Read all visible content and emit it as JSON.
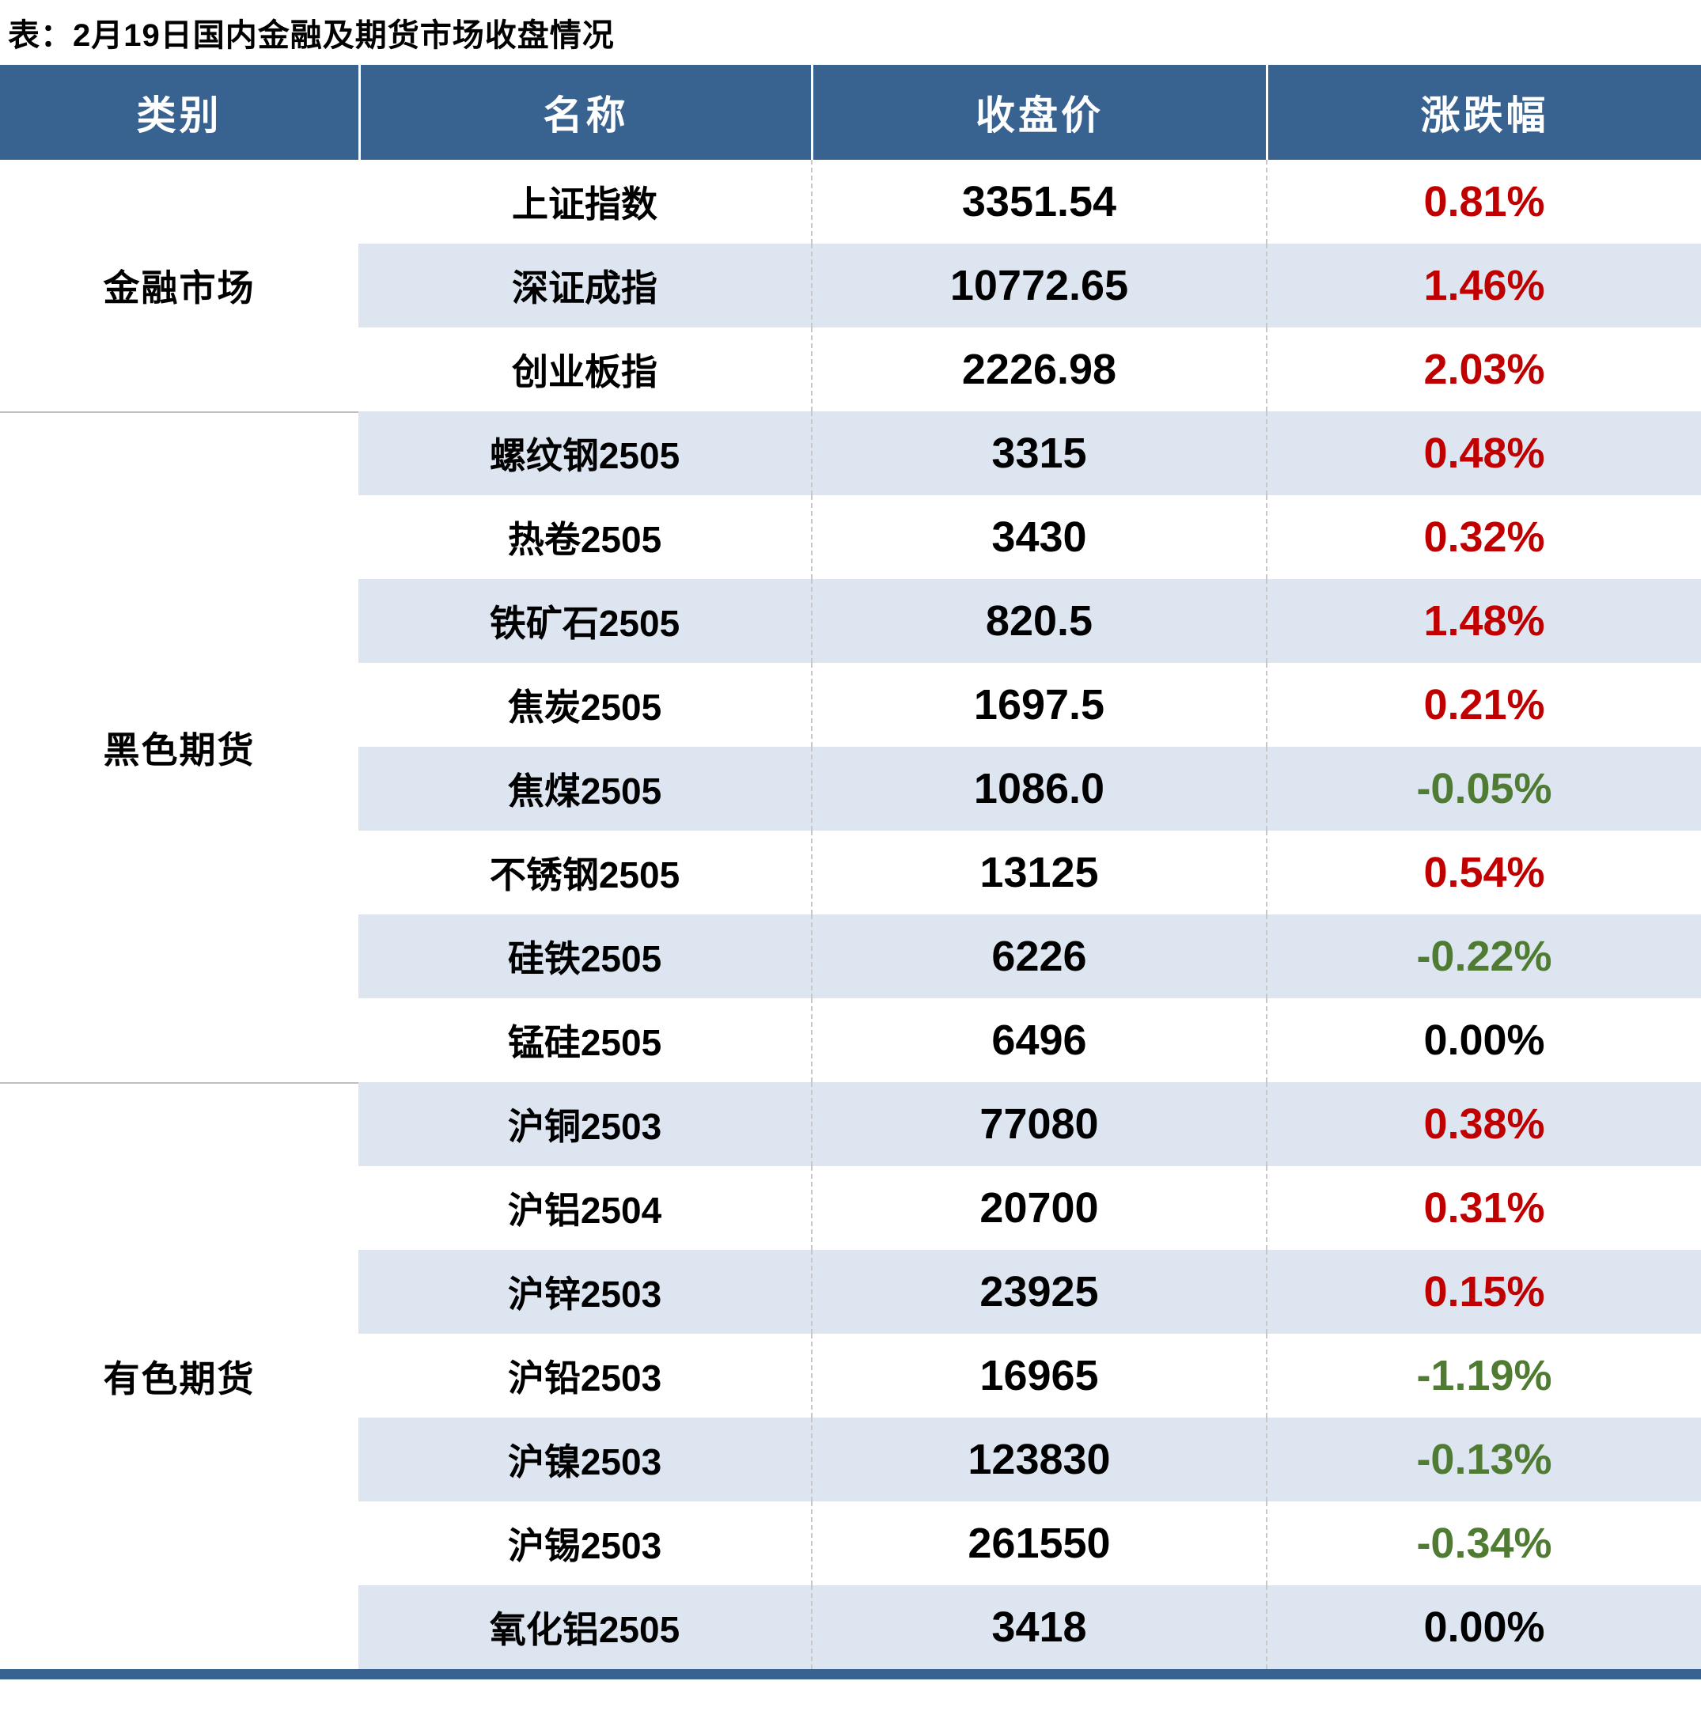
{
  "page": {
    "title": "表：2月19日国内金融及期货市场收盘情况"
  },
  "colors": {
    "header_bg": "#38628F",
    "stripe_row_bg": "#DCE5F0",
    "up_red": "#C00000",
    "down_green": "#4F7B33",
    "flat_black": "#000000",
    "bottom_bar": "#38628F",
    "section_divider": "#BFBFBF"
  },
  "table": {
    "headers": {
      "category": "类别",
      "name": "名称",
      "close": "收盘价",
      "change": "涨跌幅"
    },
    "categories": [
      {
        "label": "金融市场",
        "row_span": 3
      },
      {
        "label": "黑色期货",
        "row_span": 8
      },
      {
        "label": "有色期货",
        "row_span": 7
      }
    ],
    "rows": [
      {
        "category": "金融市场",
        "name": "上证指数",
        "close": "3351.54",
        "change": "0.81%",
        "direction": "up"
      },
      {
        "category": "金融市场",
        "name": "深证成指",
        "close": "10772.65",
        "change": "1.46%",
        "direction": "up"
      },
      {
        "category": "金融市场",
        "name": "创业板指",
        "close": "2226.98",
        "change": "2.03%",
        "direction": "up"
      },
      {
        "category": "黑色期货",
        "name": "螺纹钢2505",
        "close": "3315",
        "change": "0.48%",
        "direction": "up"
      },
      {
        "category": "黑色期货",
        "name": "热卷2505",
        "close": "3430",
        "change": "0.32%",
        "direction": "up"
      },
      {
        "category": "黑色期货",
        "name": "铁矿石2505",
        "close": "820.5",
        "change": "1.48%",
        "direction": "up"
      },
      {
        "category": "黑色期货",
        "name": "焦炭2505",
        "close": "1697.5",
        "change": "0.21%",
        "direction": "up"
      },
      {
        "category": "黑色期货",
        "name": "焦煤2505",
        "close": "1086.0",
        "change": "-0.05%",
        "direction": "down"
      },
      {
        "category": "黑色期货",
        "name": "不锈钢2505",
        "close": "13125",
        "change": "0.54%",
        "direction": "up"
      },
      {
        "category": "黑色期货",
        "name": "硅铁2505",
        "close": "6226",
        "change": "-0.22%",
        "direction": "down"
      },
      {
        "category": "黑色期货",
        "name": "锰硅2505",
        "close": "6496",
        "change": "0.00%",
        "direction": "flat"
      },
      {
        "category": "有色期货",
        "name": "沪铜2503",
        "close": "77080",
        "change": "0.38%",
        "direction": "up"
      },
      {
        "category": "有色期货",
        "name": "沪铝2504",
        "close": "20700",
        "change": "0.31%",
        "direction": "up"
      },
      {
        "category": "有色期货",
        "name": "沪锌2503",
        "close": "23925",
        "change": "0.15%",
        "direction": "up"
      },
      {
        "category": "有色期货",
        "name": "沪铅2503",
        "close": "16965",
        "change": "-1.19%",
        "direction": "down"
      },
      {
        "category": "有色期货",
        "name": "沪镍2503",
        "close": "123830",
        "change": "-0.13%",
        "direction": "down"
      },
      {
        "category": "有色期货",
        "name": "沪锡2503",
        "close": "261550",
        "change": "-0.34%",
        "direction": "down"
      },
      {
        "category": "有色期货",
        "name": "氧化铝2505",
        "close": "3418",
        "change": "0.00%",
        "direction": "flat"
      }
    ]
  },
  "chart_data": {
    "type": "table",
    "title": "表：2月19日国内金融及期货市场收盘情况",
    "columns": [
      "类别",
      "名称",
      "收盘价",
      "涨跌幅"
    ],
    "rows": [
      [
        "金融市场",
        "上证指数",
        3351.54,
        0.81
      ],
      [
        "金融市场",
        "深证成指",
        10772.65,
        1.46
      ],
      [
        "金融市场",
        "创业板指",
        2226.98,
        2.03
      ],
      [
        "黑色期货",
        "螺纹钢2505",
        3315,
        0.48
      ],
      [
        "黑色期货",
        "热卷2505",
        3430,
        0.32
      ],
      [
        "黑色期货",
        "铁矿石2505",
        820.5,
        1.48
      ],
      [
        "黑色期货",
        "焦炭2505",
        1697.5,
        0.21
      ],
      [
        "黑色期货",
        "焦煤2505",
        1086.0,
        -0.05
      ],
      [
        "黑色期货",
        "不锈钢2505",
        13125,
        0.54
      ],
      [
        "黑色期货",
        "硅铁2505",
        6226,
        -0.22
      ],
      [
        "黑色期货",
        "锰硅2505",
        6496,
        0.0
      ],
      [
        "有色期货",
        "沪铜2503",
        77080,
        0.38
      ],
      [
        "有色期货",
        "沪铝2504",
        20700,
        0.31
      ],
      [
        "有色期货",
        "沪锌2503",
        23925,
        0.15
      ],
      [
        "有色期货",
        "沪铅2503",
        16965,
        -1.19
      ],
      [
        "有色期货",
        "沪镍2503",
        123830,
        -0.13
      ],
      [
        "有色期货",
        "沪锡2503",
        261550,
        -0.34
      ],
      [
        "有色期货",
        "氧化铝2505",
        3418,
        0.0
      ]
    ],
    "notes": "涨跌幅 unit: percent; positive values shown in red, negative in green, zero in black"
  }
}
